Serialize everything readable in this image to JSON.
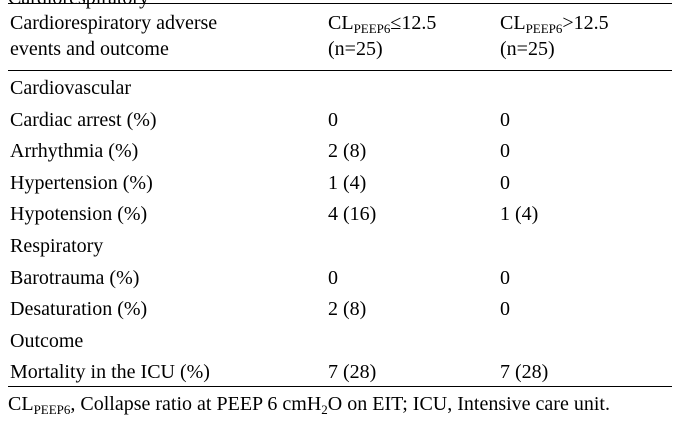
{
  "title_fragment": "Cardiorespiratory",
  "header": {
    "col1": [
      "Cardiorespiratory adverse",
      "events and outcome"
    ],
    "col2": {
      "cl": "CL",
      "sub": "PEEP6",
      "cond": "≤12.5",
      "n": "(n=25)"
    },
    "col3": {
      "cl": "CL",
      "sub": "PEEP6",
      "cond": ">12.5",
      "n": "(n=25)"
    }
  },
  "rows": [
    {
      "label": "Cardiovascular",
      "v1": "",
      "v2": ""
    },
    {
      "label": "Cardiac arrest (%)",
      "v1": "0",
      "v2": "0"
    },
    {
      "label": "Arrhythmia (%)",
      "v1": "2 (8)",
      "v2": "0"
    },
    {
      "label": "Hypertension (%)",
      "v1": "1 (4)",
      "v2": "0"
    },
    {
      "label": "Hypotension (%)",
      "v1": "4 (16)",
      "v2": "1 (4)"
    },
    {
      "label": "Respiratory",
      "v1": "",
      "v2": ""
    },
    {
      "label": "Barotrauma (%)",
      "v1": "0",
      "v2": "0"
    },
    {
      "label": "Desaturation (%)",
      "v1": "2 (8)",
      "v2": "0"
    },
    {
      "label": "Outcome",
      "v1": "",
      "v2": ""
    },
    {
      "label": "Mortality in the ICU (%)",
      "v1": "7 (28)",
      "v2": "7 (28)"
    }
  ],
  "footnote": {
    "abbr_cl": "CL",
    "abbr_sub": "PEEP6",
    "part1": ", Collapse ratio at PEEP 6 cmH",
    "h2o_sub": "2",
    "part2": "O on EIT; ICU, Intensive care unit."
  }
}
